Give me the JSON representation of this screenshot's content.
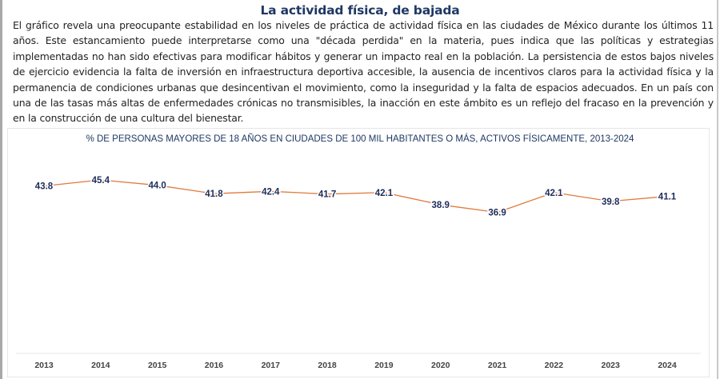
{
  "header": {
    "title": "La actividad física, de bajada",
    "paragraph": "El gráfico revela una preocupante estabilidad en los niveles de práctica de actividad física en las ciudades de México durante los últimos 11 años. Este estancamiento puede interpretarse como una \"década perdida\" en la materia, pues indica que las políticas y estrategias implementadas no han sido efectivas para modificar hábitos y generar un impacto real en la población. La persistencia de estos bajos niveles de ejercicio evidencia la falta de inversión en infraestructura deportiva accesible, la ausencia de incentivos claros para la actividad física y la permanencia de condiciones urbanas que desincentivan el movimiento, como la inseguridad y la falta de espacios adecuados. En un país con una de las tasas más altas de enfermedades crónicas no transmisibles, la inacción en este ámbito es un reflejo del fracaso en la prevención y en la construcción de una cultura del bienestar."
  },
  "chart_data": {
    "type": "line",
    "title": "% DE PERSONAS MAYORES DE 18 AÑOS EN CIUDADES DE 100 MIL HABITANTES O MÁS, ACTIVOS FÍSICAMENTE, 2013-2024",
    "xlabel": "",
    "ylabel": "",
    "categories": [
      "2013",
      "2014",
      "2015",
      "2016",
      "2017",
      "2018",
      "2019",
      "2020",
      "2021",
      "2022",
      "2023",
      "2024"
    ],
    "series": [
      {
        "name": "% activos físicamente",
        "values": [
          43.8,
          45.4,
          44.0,
          41.8,
          42.4,
          41.7,
          42.1,
          38.9,
          36.9,
          42.1,
          39.8,
          41.1
        ],
        "labels": [
          "43.8",
          "45.4",
          "44.0",
          "41.8",
          "42.4",
          "41.7",
          "42.1",
          "38.9",
          "36.9",
          "42.1",
          "39.8",
          "41.1"
        ],
        "color": "#e07a3c"
      }
    ],
    "ylim": [
      0,
      50
    ],
    "grid": false,
    "legend": "none",
    "colors": {
      "title": "#1f3864",
      "labels": "#1f2d5a",
      "ticks": "#444444",
      "baseline": "#e4e4e4"
    }
  }
}
